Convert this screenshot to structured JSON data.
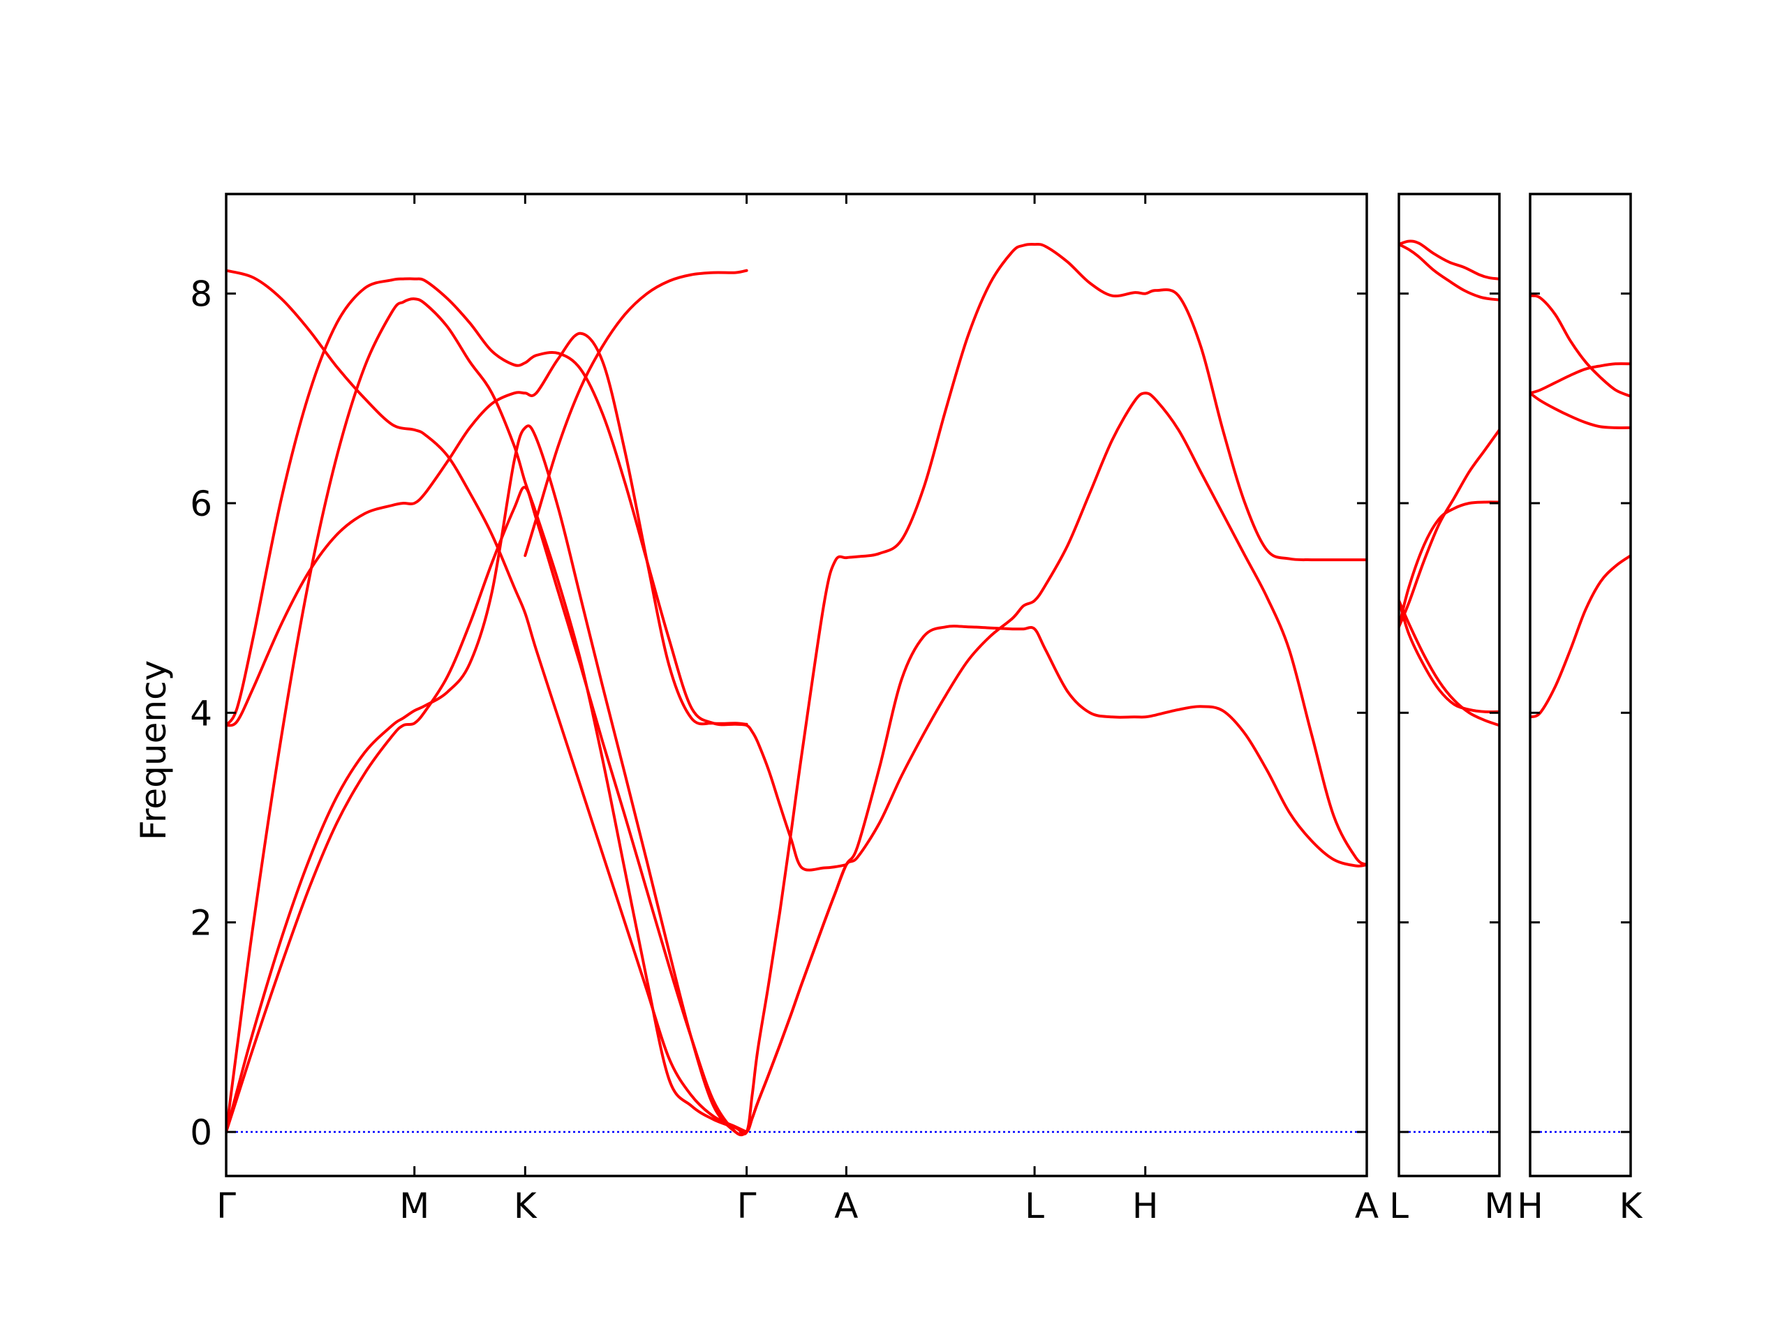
{
  "chart_data": {
    "type": "line",
    "title": "",
    "ylabel": "Frequency",
    "ylim": [
      -0.42,
      8.95
    ],
    "yticks": [
      0,
      2,
      4,
      6,
      8
    ],
    "ytick_labels": [
      "0",
      "2",
      "4",
      "6",
      "8"
    ],
    "line_color": "#ff0000",
    "zero_line_color": "#0000ff",
    "panels": [
      {
        "id": "main",
        "xlim": [
          0,
          10.3
        ],
        "xticks": [
          {
            "x": 0,
            "label": "Γ"
          },
          {
            "x": 1.7,
            "label": "M"
          },
          {
            "x": 2.7,
            "label": "K"
          },
          {
            "x": 4.7,
            "label": "Γ"
          },
          {
            "x": 5.6,
            "label": "A"
          },
          {
            "x": 7.3,
            "label": "L"
          },
          {
            "x": 8.3,
            "label": "H"
          },
          {
            "x": 10.3,
            "label": "A"
          }
        ],
        "series": [
          {
            "x": [
              0,
              0.1,
              0.25,
              0.5,
              0.75,
              1,
              1.25,
              1.5,
              1.6,
              1.7,
              1.8,
              2,
              2.2,
              2.4,
              2.6,
              2.7,
              2.8,
              3,
              3.2,
              3.4,
              3.6,
              3.8,
              4,
              4.2,
              4.4,
              4.6,
              4.7,
              4.75,
              4.8,
              4.9,
              5,
              5.1,
              5.2,
              5.4,
              5.5,
              5.6,
              5.7,
              5.9,
              6.1,
              6.3,
              6.5,
              6.7,
              6.9,
              7.1,
              7.2,
              7.3,
              7.4,
              7.6,
              7.8,
              8,
              8.2,
              8.3,
              8.4,
              8.6,
              8.8,
              9,
              9.2,
              9.4,
              9.6,
              9.8,
              10,
              10.2,
              10.3
            ],
            "y": [
              0,
              0.33,
              0.82,
              1.6,
              2.33,
              2.95,
              3.42,
              3.78,
              3.88,
              3.9,
              4.02,
              4.35,
              4.85,
              5.43,
              5.95,
              6.15,
              5.85,
              5.15,
              4.45,
              3.72,
              3.02,
              2.3,
              1.58,
              0.9,
              0.3,
              0,
              0,
              0.13,
              0.28,
              0.55,
              0.83,
              1.12,
              1.42,
              2,
              2.28,
              2.55,
              2.62,
              2.95,
              3.4,
              3.8,
              4.17,
              4.5,
              4.73,
              4.9,
              5.02,
              5.07,
              5.22,
              5.6,
              6.1,
              6.6,
              6.97,
              7.05,
              6.98,
              6.7,
              6.3,
              5.9,
              5.5,
              5.1,
              4.6,
              3.8,
              3.02,
              2.62,
              2.55
            ]
          },
          {
            "x": [
              0,
              0.1,
              0.25,
              0.5,
              0.75,
              1,
              1.25,
              1.5,
              1.6,
              1.7,
              1.8,
              2,
              2.2,
              2.4,
              2.6,
              2.7,
              2.8,
              3,
              3.2,
              3.4,
              3.6,
              3.8,
              4,
              4.2,
              4.4,
              4.6,
              4.7,
              4.75,
              4.8,
              4.9,
              5,
              5.1,
              5.2,
              5.4,
              5.5,
              5.6,
              5.7,
              5.9,
              6.1,
              6.3,
              6.5,
              6.7,
              6.9,
              7.1,
              7.2,
              7.3,
              7.4,
              7.6,
              7.8,
              8,
              8.2,
              8.3,
              8.4,
              8.6,
              8.8,
              9,
              9.2,
              9.4,
              9.6,
              9.8,
              10,
              10.2,
              10.3
            ],
            "y": [
              0,
              0.4,
              0.98,
              1.85,
              2.6,
              3.2,
              3.62,
              3.88,
              3.95,
              4.02,
              4.07,
              4.2,
              4.47,
              5.15,
              6.4,
              6.72,
              6.62,
              5.95,
              5.1,
              4.25,
              3.42,
              2.58,
              1.72,
              0.9,
              0.25,
              0,
              0,
              0.13,
              0.28,
              0.55,
              0.83,
              1.12,
              1.42,
              2,
              2.28,
              2.55,
              2.72,
              3.48,
              4.32,
              4.73,
              4.82,
              4.82,
              4.81,
              4.8,
              4.8,
              4.8,
              4.6,
              4.2,
              4,
              3.96,
              3.96,
              3.96,
              3.98,
              4.03,
              4.06,
              4.02,
              3.8,
              3.45,
              3.05,
              2.78,
              2.6,
              2.54,
              2.55
            ]
          },
          {
            "x": [
              0,
              0.1,
              0.25,
              0.5,
              0.75,
              1,
              1.25,
              1.5,
              1.6,
              1.7,
              1.8,
              2,
              2.2,
              2.4,
              2.6,
              2.7,
              2.8,
              3,
              3.2,
              3.4,
              3.6,
              3.8,
              4,
              4.2,
              4.4,
              4.6,
              4.7,
              4.75,
              4.8,
              4.9,
              5,
              5.1,
              5.2,
              5.4,
              5.5,
              5.6,
              5.7,
              5.9,
              6.1,
              6.3,
              6.5,
              6.7,
              6.9,
              7.1,
              7.2,
              7.3,
              7.4,
              7.6,
              7.8,
              8,
              8.2,
              8.3,
              8.4,
              8.6,
              8.8,
              9,
              9.2,
              9.4,
              9.6,
              9.8,
              10,
              10.2,
              10.3
            ],
            "y": [
              0,
              0.82,
              2.02,
              3.78,
              5.28,
              6.45,
              7.3,
              7.83,
              7.92,
              7.95,
              7.9,
              7.68,
              7.35,
              7.05,
              6.55,
              6.2,
              5.9,
              5.25,
              4.5,
              3.55,
              2.5,
              1.45,
              0.5,
              0.25,
              0.12,
              0.04,
              0,
              0.35,
              0.78,
              1.42,
              2.1,
              2.85,
              3.62,
              5.05,
              5.45,
              5.48,
              5.49,
              5.52,
              5.65,
              6.15,
              6.9,
              7.6,
              8.1,
              8.4,
              8.46,
              8.47,
              8.45,
              8.3,
              8.1,
              7.98,
              8.01,
              8,
              8.03,
              7.98,
              7.5,
              6.7,
              6.0,
              5.55,
              5.47,
              5.46,
              5.46,
              5.46,
              5.46
            ]
          },
          {
            "x": [
              0,
              0.1,
              0.25,
              0.5,
              0.75,
              1,
              1.25,
              1.5,
              1.6,
              1.7,
              1.8,
              2,
              2.2,
              2.4,
              2.6,
              2.7,
              2.8,
              3,
              3.2,
              3.4,
              3.6,
              3.8,
              4,
              4.2,
              4.4,
              4.6,
              4.7,
              4.75,
              4.8,
              4.9,
              5,
              5.1,
              5.2,
              5.4,
              5.5,
              5.6
            ],
            "y": [
              3.88,
              4.05,
              4.75,
              6.05,
              7.05,
              7.72,
              8.05,
              8.13,
              8.14,
              8.14,
              8.12,
              7.95,
              7.72,
              7.45,
              7.32,
              7.34,
              7.41,
              7.43,
              7.28,
              6.85,
              6.2,
              5.45,
              4.7,
              4.05,
              3.9,
              3.89,
              3.88,
              3.82,
              3.72,
              3.45,
              3.12,
              2.8,
              2.52,
              2.52,
              2.53,
              2.55
            ]
          },
          {
            "x": [
              0,
              0.1,
              0.25,
              0.5,
              0.75,
              1,
              1.25,
              1.5,
              1.6,
              1.7,
              1.8,
              2,
              2.2,
              2.4,
              2.6,
              2.7,
              2.8,
              3,
              3.2,
              3.4,
              3.6,
              3.8,
              4,
              4.2,
              4.4,
              4.6,
              4.7
            ],
            "y": [
              3.88,
              3.92,
              4.25,
              4.85,
              5.35,
              5.7,
              5.9,
              5.98,
              6.0,
              6.0,
              6.1,
              6.4,
              6.72,
              6.95,
              7.05,
              7.05,
              7.05,
              7.38,
              7.62,
              7.35,
              6.5,
              5.45,
              4.45,
              3.95,
              3.9,
              3.9,
              3.89
            ]
          },
          {
            "x": [
              0,
              0.25,
              0.5,
              0.75,
              1,
              1.25,
              1.5,
              1.7,
              1.8,
              2,
              2.2,
              2.4,
              2.6,
              2.7,
              2.8,
              3,
              3.2,
              3.4,
              3.6,
              3.8,
              4,
              4.2,
              4.4,
              4.6,
              4.7
            ],
            "y": [
              8.22,
              8.15,
              7.95,
              7.65,
              7.3,
              7.0,
              6.75,
              6.7,
              6.65,
              6.45,
              6.1,
              5.7,
              5.2,
              4.95,
              4.6,
              3.95,
              3.3,
              2.65,
              2.0,
              1.35,
              0.7,
              0.35,
              0.15,
              0.05,
              0
            ]
          },
          {
            "x": [
              2.7,
              2.8,
              3,
              3.2,
              3.4,
              3.6,
              3.8,
              4,
              4.2,
              4.4,
              4.6,
              4.7
            ],
            "y": [
              5.5,
              5.85,
              6.55,
              7.1,
              7.5,
              7.8,
              8.0,
              8.12,
              8.18,
              8.2,
              8.2,
              8.22
            ]
          }
        ]
      },
      {
        "id": "L-M",
        "xlim": [
          0,
          1
        ],
        "xticks": [
          {
            "x": 0,
            "label": "L"
          },
          {
            "x": 1,
            "label": "M"
          }
        ],
        "series": [
          {
            "x": [
              0,
              0.1,
              0.2,
              0.35,
              0.5,
              0.65,
              0.8,
              0.9,
              1
            ],
            "y": [
              8.47,
              8.5,
              8.48,
              8.38,
              8.3,
              8.25,
              8.18,
              8.15,
              8.14
            ]
          },
          {
            "x": [
              0,
              0.1,
              0.2,
              0.35,
              0.5,
              0.65,
              0.8,
              0.9,
              1
            ],
            "y": [
              8.47,
              8.42,
              8.35,
              8.22,
              8.12,
              8.03,
              7.97,
              7.95,
              7.94
            ]
          },
          {
            "x": [
              0,
              0.1,
              0.25,
              0.4,
              0.55,
              0.7,
              0.85,
              1
            ],
            "y": [
              4.82,
              5.05,
              5.45,
              5.8,
              6.05,
              6.3,
              6.5,
              6.7
            ]
          },
          {
            "x": [
              0,
              0.1,
              0.25,
              0.4,
              0.55,
              0.7,
              0.85,
              1
            ],
            "y": [
              4.82,
              5.2,
              5.6,
              5.85,
              5.95,
              6.0,
              6.01,
              6.01
            ]
          },
          {
            "x": [
              0,
              0.1,
              0.25,
              0.4,
              0.55,
              0.7,
              0.85,
              1
            ],
            "y": [
              5.07,
              4.75,
              4.45,
              4.22,
              4.08,
              4.03,
              4.01,
              4.01
            ]
          },
          {
            "x": [
              0,
              0.1,
              0.25,
              0.4,
              0.55,
              0.7,
              0.85,
              1
            ],
            "y": [
              5.07,
              4.85,
              4.55,
              4.3,
              4.12,
              4.0,
              3.93,
              3.88
            ]
          }
        ]
      },
      {
        "id": "H-K",
        "xlim": [
          0,
          1
        ],
        "xticks": [
          {
            "x": 0,
            "label": "H"
          },
          {
            "x": 1,
            "label": "K"
          }
        ],
        "series": [
          {
            "x": [
              0,
              0.1,
              0.25,
              0.4,
              0.55,
              0.7,
              0.85,
              1
            ],
            "y": [
              7.98,
              7.96,
              7.8,
              7.55,
              7.35,
              7.2,
              7.08,
              7.02
            ]
          },
          {
            "x": [
              0,
              0.1,
              0.25,
              0.4,
              0.55,
              0.7,
              0.85,
              1
            ],
            "y": [
              7.05,
              7.08,
              7.15,
              7.22,
              7.28,
              7.31,
              7.33,
              7.33
            ]
          },
          {
            "x": [
              0,
              0.1,
              0.25,
              0.4,
              0.55,
              0.7,
              0.85,
              1
            ],
            "y": [
              7.05,
              6.98,
              6.9,
              6.83,
              6.77,
              6.73,
              6.72,
              6.72
            ]
          },
          {
            "x": [
              0,
              0.1,
              0.25,
              0.4,
              0.55,
              0.7,
              0.85,
              1
            ],
            "y": [
              3.96,
              4.0,
              4.25,
              4.6,
              4.98,
              5.25,
              5.4,
              5.5
            ]
          }
        ]
      }
    ]
  }
}
